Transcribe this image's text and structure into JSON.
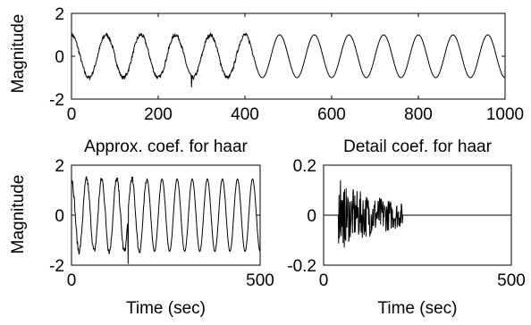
{
  "chart_data": [
    {
      "type": "line",
      "title": "",
      "xlabel": "",
      "ylabel": "Magnitude",
      "xlim": [
        0,
        1000
      ],
      "ylim": [
        -2,
        2
      ],
      "xticks": [
        "0",
        "200",
        "400",
        "600",
        "800",
        "1000"
      ],
      "yticks": [
        "2",
        "0",
        "-2"
      ],
      "signal": {
        "period": 80,
        "amplitude": 1.0,
        "points": 1000,
        "noise_until": 420,
        "noise_level": 0.18
      }
    },
    {
      "type": "line",
      "title": "Approx. coef. for haar",
      "xlabel": "Time (sec)",
      "ylabel": "Magnitude",
      "xlim": [
        0,
        500
      ],
      "ylim": [
        -2,
        2
      ],
      "xticks": [
        "0",
        "500"
      ],
      "yticks": [
        "2",
        "0",
        "-2"
      ],
      "signal": {
        "period": 40,
        "amplitude": 1.45,
        "points": 500,
        "noise_until": 200,
        "noise_level": 0.25
      }
    },
    {
      "type": "line",
      "title": "Detail coef. for haar",
      "xlabel": "Time (sec)",
      "ylabel": "",
      "xlim": [
        0,
        500
      ],
      "ylim": [
        -0.2,
        0.2
      ],
      "xticks": [
        "0",
        "500"
      ],
      "yticks": [
        "0.2",
        "0",
        "-0.2"
      ],
      "signal": {
        "points": 500,
        "burst_start": 40,
        "burst_end": 210,
        "burst_amplitude": 0.12
      }
    }
  ]
}
